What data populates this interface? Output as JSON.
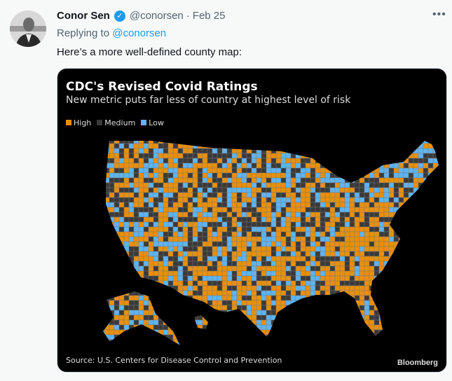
{
  "tweet": {
    "author_name": "Conor Sen",
    "handle": "@conorsen",
    "separator": "·",
    "date": "Feb 25",
    "replying_prefix": "Replying to",
    "replying_handle": "@conorsen",
    "text": "Here’s a more well-defined county map:",
    "more_icon": "more-horizontal-icon"
  },
  "image": {
    "title": "CDC's Revised Covid Ratings",
    "subtitle": "New metric puts far less of country at highest level of risk",
    "legend": [
      {
        "label": "High",
        "color": "#e8900c"
      },
      {
        "label": "Medium",
        "color": "#3a3a3a"
      },
      {
        "label": "Low",
        "color": "#5eb4f2"
      }
    ],
    "source": "Source: U.S. Centers for Disease Control and Prevention",
    "brand": "Bloomberg"
  }
}
